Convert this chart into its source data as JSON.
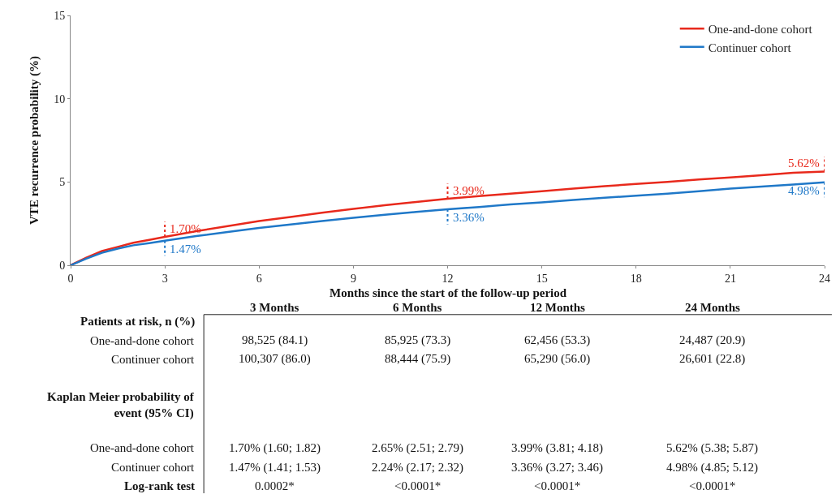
{
  "chart_data": {
    "type": "line",
    "ylabel": "VTE recurrence probability (%)",
    "xlabel": "Months since the start of the follow-up period",
    "x": [
      0,
      0.5,
      1,
      1.5,
      2,
      2.5,
      3,
      4,
      5,
      6,
      7,
      8,
      9,
      10,
      11,
      12,
      13,
      14,
      15,
      16,
      17,
      18,
      19,
      20,
      21,
      22,
      23,
      24
    ],
    "series": [
      {
        "name": "One-and-done cohort",
        "color": "#e8291c",
        "values": [
          0,
          0.45,
          0.85,
          1.1,
          1.35,
          1.52,
          1.7,
          2.05,
          2.35,
          2.65,
          2.9,
          3.15,
          3.38,
          3.6,
          3.8,
          3.99,
          4.15,
          4.3,
          4.45,
          4.6,
          4.75,
          4.88,
          5.0,
          5.15,
          5.27,
          5.4,
          5.55,
          5.62
        ]
      },
      {
        "name": "Continuer cohort",
        "color": "#1f78c8",
        "values": [
          0,
          0.4,
          0.75,
          1.0,
          1.2,
          1.33,
          1.47,
          1.75,
          2.0,
          2.24,
          2.45,
          2.65,
          2.85,
          3.03,
          3.2,
          3.36,
          3.5,
          3.65,
          3.78,
          3.92,
          4.05,
          4.18,
          4.3,
          4.45,
          4.6,
          4.72,
          4.85,
          4.98
        ]
      }
    ],
    "xlim": [
      0,
      24
    ],
    "xticks": [
      0,
      3,
      6,
      9,
      12,
      15,
      18,
      21,
      24
    ],
    "ylim": [
      0,
      15
    ],
    "yticks": [
      0,
      5,
      10,
      15
    ],
    "legend": "top right",
    "marker": "none",
    "line_style": "solid",
    "annotations": [
      {
        "text": "1.70%",
        "x": 3,
        "y": 1.7
      },
      {
        "text": "1.47%",
        "x": 3,
        "y": 1.47
      },
      {
        "text": "3.99%",
        "x": 12,
        "y": 3.99
      },
      {
        "text": "3.36%",
        "x": 12,
        "y": 3.36
      },
      {
        "text": "5.62%",
        "x": 24,
        "y": 5.62
      },
      {
        "text": "4.98%",
        "x": 24,
        "y": 4.98
      },
      "3 Months",
      "6 Months",
      "12 Months",
      "24 Months",
      "Patients at risk, n (%)",
      "One-and-done cohort",
      "98,525 (84.1)",
      "85,925 (73.3)",
      "62,456 (53.3)",
      "24,487 (20.9)",
      "Continuer cohort",
      "100,307 (86.0)",
      "88,444 (75.9)",
      "65,290 (56.0)",
      "26,601 (22.8)",
      "Kaplan Meier probability of\nevent (95% CI)",
      "One-and-done cohort",
      "1.70% (1.60; 1.82)",
      "2.65% (2.51; 2.79)",
      "3.99% (3.81; 4.18)",
      "5.62% (5.38; 5.87)",
      "Continuer cohort",
      "1.47% (1.41; 1.53)",
      "2.24% (2.17; 2.32)",
      "3.36% (3.27; 3.46)",
      "4.98% (4.85; 5.12)",
      "Log-rank test",
      "0.0002*",
      "<0.0001*",
      "<0.0001*",
      "<0.0001*"
    ]
  }
}
